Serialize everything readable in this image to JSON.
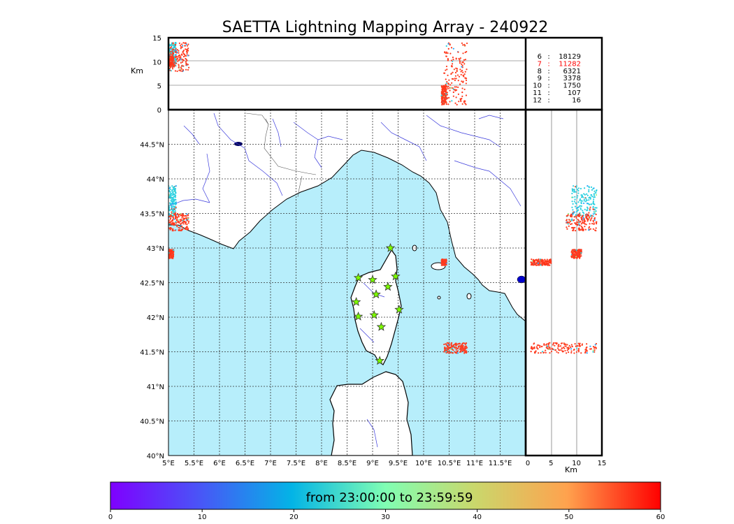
{
  "title": "SAETTA Lightning Mapping Array - 240922",
  "colors": {
    "sea": "#b7eefb",
    "land": "#ffffff",
    "coast": "#000000",
    "river": "#3b3bdc",
    "border": "#555555",
    "station": "#7cfc00",
    "highlight_red": "#ff0000"
  },
  "chart_data": {
    "type": "scatter",
    "map": {
      "lon_range": [
        5,
        12
      ],
      "lat_range": [
        40,
        45
      ],
      "lon_ticks": [
        "5°E",
        "5.5°E",
        "6°E",
        "6.5°E",
        "7°E",
        "7.5°E",
        "8°E",
        "8.5°E",
        "9°E",
        "9.5°E",
        "10°E",
        "10.5°E",
        "11°E",
        "11.5°E"
      ],
      "lat_ticks": [
        "40°N",
        "40.5°N",
        "41°N",
        "41.5°N",
        "42°N",
        "42.5°N",
        "43°N",
        "43.5°N",
        "44°N",
        "44.5°N"
      ],
      "grid": true
    },
    "altitude_axis": {
      "label": "Km",
      "range": [
        0,
        15
      ],
      "ticks": [
        "0",
        "5",
        "10",
        "15"
      ]
    },
    "station_counts": [
      {
        "stations": "6",
        "count": "18129",
        "highlight": false
      },
      {
        "stations": "7",
        "count": "11282",
        "highlight": true
      },
      {
        "stations": "8",
        "count": "6321",
        "highlight": false
      },
      {
        "stations": "9",
        "count": "3378",
        "highlight": false
      },
      {
        "stations": "10",
        "count": "1750",
        "highlight": false
      },
      {
        "stations": "11",
        "count": "107",
        "highlight": false
      },
      {
        "stations": "12",
        "count": "16",
        "highlight": false
      }
    ],
    "stations": [
      {
        "lon": 9.35,
        "lat": 43.0
      },
      {
        "lon": 8.72,
        "lat": 42.57
      },
      {
        "lon": 9.0,
        "lat": 42.54
      },
      {
        "lon": 9.45,
        "lat": 42.59
      },
      {
        "lon": 9.3,
        "lat": 42.44
      },
      {
        "lon": 9.07,
        "lat": 42.33
      },
      {
        "lon": 8.68,
        "lat": 42.22
      },
      {
        "lon": 9.52,
        "lat": 42.11
      },
      {
        "lon": 8.72,
        "lat": 42.01
      },
      {
        "lon": 9.03,
        "lat": 42.03
      },
      {
        "lon": 9.17,
        "lat": 41.86
      },
      {
        "lon": 9.14,
        "lat": 41.37
      }
    ],
    "flash_clusters": [
      {
        "lon": [
          5.0,
          5.15
        ],
        "lat": [
          43.45,
          43.9
        ],
        "alt": [
          9,
          14
        ],
        "color": "#2bd0e0"
      },
      {
        "lon": [
          5.0,
          5.4
        ],
        "lat": [
          43.25,
          43.5
        ],
        "alt": [
          8,
          14
        ],
        "color": "#ff3b1f"
      },
      {
        "lon": [
          5.0,
          5.1
        ],
        "lat": [
          42.85,
          42.98
        ],
        "alt": [
          9,
          11
        ],
        "color": "#ff3b1f"
      },
      {
        "lon": [
          10.35,
          10.45
        ],
        "lat": [
          42.75,
          42.84
        ],
        "alt": [
          1,
          5
        ],
        "color": "#ff3b1f"
      },
      {
        "lon": [
          10.4,
          10.85
        ],
        "lat": [
          41.48,
          41.63
        ],
        "alt": [
          1,
          14
        ],
        "color": "#ff3b1f"
      }
    ],
    "colorbar": {
      "label": "from 23:00:00 to 23:59:59",
      "range": [
        0,
        60
      ],
      "ticks": [
        "0",
        "10",
        "20",
        "30",
        "40",
        "50",
        "60"
      ],
      "colormap": "rainbow"
    }
  }
}
